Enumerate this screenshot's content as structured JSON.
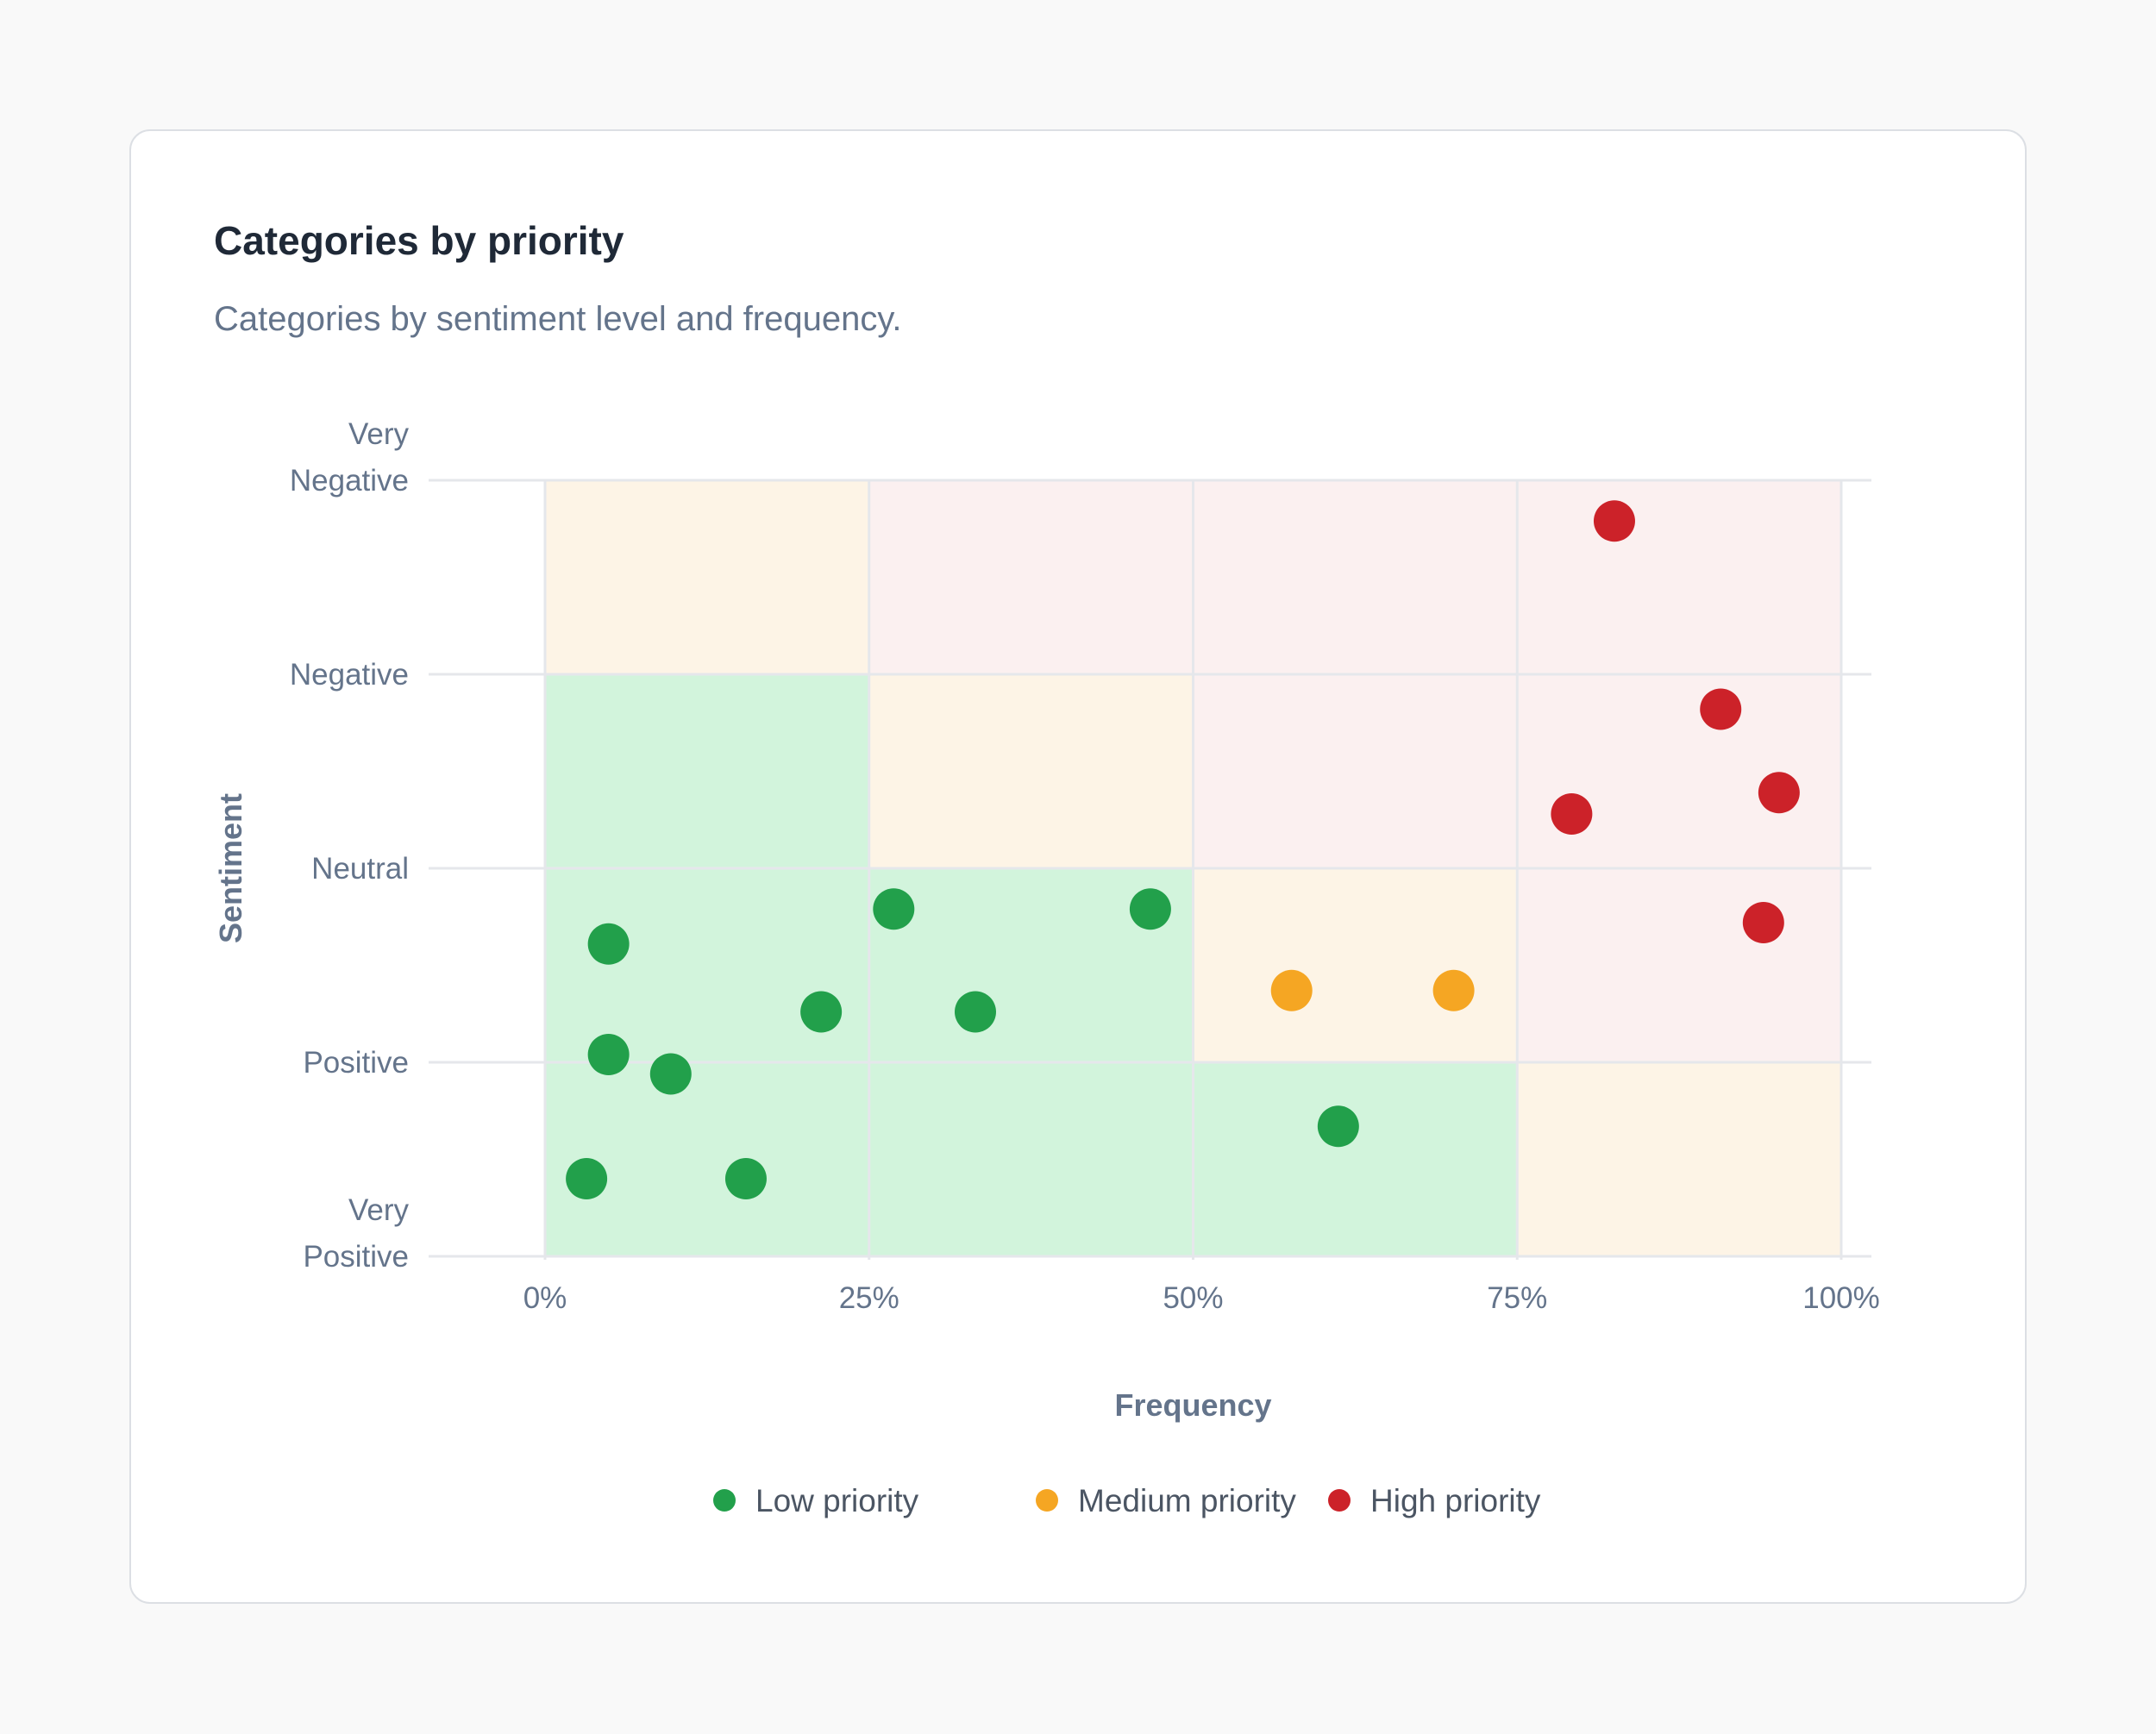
{
  "card": {
    "title": "Categories by priority",
    "subtitle": "Categories by sentiment level and frequency."
  },
  "colors": {
    "low": "#22a04b",
    "medium": "#f5a623",
    "high": "#cc2229",
    "zone_low": "#d2f4dc",
    "zone_medium": "#fdf4e6",
    "zone_high": "#fbf0f0",
    "grid": "#e5e7eb"
  },
  "chart_data": {
    "type": "scatter",
    "xlabel": "Frequency",
    "ylabel": "Sentiment",
    "xlim": [
      0,
      100
    ],
    "x_unit": "%",
    "x_ticks": [
      {
        "value": 0,
        "label": "0%"
      },
      {
        "value": 25,
        "label": "25%"
      },
      {
        "value": 50,
        "label": "50%"
      },
      {
        "value": 75,
        "label": "75%"
      },
      {
        "value": 100,
        "label": "100%"
      }
    ],
    "y_levels": [
      {
        "value": 4,
        "label": [
          "Very",
          "Negative"
        ]
      },
      {
        "value": 3,
        "label": [
          "Negative"
        ]
      },
      {
        "value": 2,
        "label": [
          "Neutral"
        ]
      },
      {
        "value": 1,
        "label": [
          "Positive"
        ]
      },
      {
        "value": 0,
        "label": [
          "Very",
          "Positive"
        ]
      }
    ],
    "ylim": [
      0,
      4
    ],
    "grid": true,
    "legend_position": "bottom-center",
    "zones": [
      {
        "x": [
          0,
          25
        ],
        "y": [
          3,
          4
        ],
        "level": "medium"
      },
      {
        "x": [
          25,
          50
        ],
        "y": [
          3,
          4
        ],
        "level": "high"
      },
      {
        "x": [
          50,
          75
        ],
        "y": [
          3,
          4
        ],
        "level": "high"
      },
      {
        "x": [
          75,
          100
        ],
        "y": [
          3,
          4
        ],
        "level": "high"
      },
      {
        "x": [
          0,
          25
        ],
        "y": [
          2,
          3
        ],
        "level": "low"
      },
      {
        "x": [
          25,
          50
        ],
        "y": [
          2,
          3
        ],
        "level": "medium"
      },
      {
        "x": [
          50,
          75
        ],
        "y": [
          2,
          3
        ],
        "level": "high"
      },
      {
        "x": [
          75,
          100
        ],
        "y": [
          2,
          3
        ],
        "level": "high"
      },
      {
        "x": [
          0,
          25
        ],
        "y": [
          1,
          2
        ],
        "level": "low"
      },
      {
        "x": [
          25,
          50
        ],
        "y": [
          1,
          2
        ],
        "level": "low"
      },
      {
        "x": [
          50,
          75
        ],
        "y": [
          1,
          2
        ],
        "level": "medium"
      },
      {
        "x": [
          75,
          100
        ],
        "y": [
          1,
          2
        ],
        "level": "high"
      },
      {
        "x": [
          0,
          25
        ],
        "y": [
          0,
          1
        ],
        "level": "low"
      },
      {
        "x": [
          25,
          50
        ],
        "y": [
          0,
          1
        ],
        "level": "low"
      },
      {
        "x": [
          50,
          75
        ],
        "y": [
          0,
          1
        ],
        "level": "low"
      },
      {
        "x": [
          75,
          100
        ],
        "y": [
          0,
          1
        ],
        "level": "medium"
      }
    ],
    "series": [
      {
        "name": "Low priority",
        "key": "low",
        "points": [
          {
            "x": 4.9,
            "y": 1.61
          },
          {
            "x": 26.9,
            "y": 1.79
          },
          {
            "x": 46.7,
            "y": 1.79
          },
          {
            "x": 21.3,
            "y": 1.26
          },
          {
            "x": 33.2,
            "y": 1.26
          },
          {
            "x": 4.9,
            "y": 1.04
          },
          {
            "x": 9.7,
            "y": 0.94
          },
          {
            "x": 61.2,
            "y": 0.67
          },
          {
            "x": 3.2,
            "y": 0.4
          },
          {
            "x": 15.5,
            "y": 0.4
          }
        ]
      },
      {
        "name": "Medium priority",
        "key": "medium",
        "points": [
          {
            "x": 57.6,
            "y": 1.37
          },
          {
            "x": 70.1,
            "y": 1.37
          }
        ]
      },
      {
        "name": "High priority",
        "key": "high",
        "points": [
          {
            "x": 82.5,
            "y": 3.79
          },
          {
            "x": 90.7,
            "y": 2.82
          },
          {
            "x": 95.2,
            "y": 2.39
          },
          {
            "x": 79.2,
            "y": 2.28
          },
          {
            "x": 94.0,
            "y": 1.72
          }
        ]
      }
    ]
  }
}
